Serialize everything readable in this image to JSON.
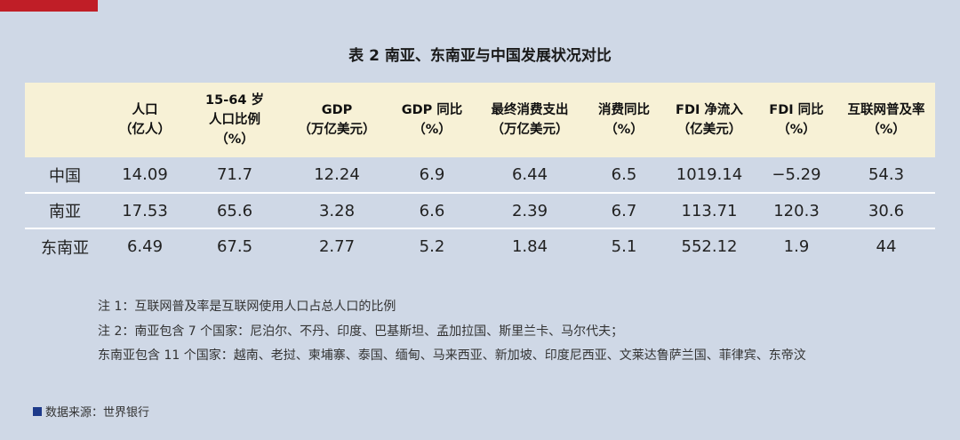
{
  "title": "表 2 南亚、东南亚与中国发展状况对比",
  "colors": {
    "accent_bar": "#c01e27",
    "header_bg": "#f7f1d6",
    "background": "#cfd8e6",
    "source_square": "#1e3a8a"
  },
  "table": {
    "headers": [
      {
        "line1": "",
        "line2": ""
      },
      {
        "line1": "人口",
        "line2": "（亿人）"
      },
      {
        "line1": "15-64 岁",
        "line2": "人口比例",
        "line3": "（%）"
      },
      {
        "line1": "GDP",
        "line2": "（万亿美元）"
      },
      {
        "line1": "GDP 同比",
        "line2": "（%）"
      },
      {
        "line1": "最终消费支出",
        "line2": "（万亿美元）"
      },
      {
        "line1": "消费同比",
        "line2": "（%）"
      },
      {
        "line1": "FDI 净流入",
        "line2": "（亿美元）"
      },
      {
        "line1": "FDI 同比",
        "line2": "（%）"
      },
      {
        "line1": "互联网普及率",
        "line2": "（%）"
      }
    ],
    "rows": [
      [
        "中国",
        "14.09",
        "71.7",
        "12.24",
        "6.9",
        "6.44",
        "6.5",
        "1019.14",
        "−5.29",
        "54.3"
      ],
      [
        "南亚",
        "17.53",
        "65.6",
        "3.28",
        "6.6",
        "2.39",
        "6.7",
        "113.71",
        "120.3",
        "30.6"
      ],
      [
        "东南亚",
        "6.49",
        "67.5",
        "2.77",
        "5.2",
        "1.84",
        "5.1",
        "552.12",
        "1.9",
        "44"
      ]
    ]
  },
  "notes": [
    "注 1：互联网普及率是互联网使用人口占总人口的比例",
    "注 2：南亚包含 7 个国家：尼泊尔、不丹、印度、巴基斯坦、孟加拉国、斯里兰卡、马尔代夫；",
    "东南亚包含 11 个国家：越南、老挝、柬埔寨、泰国、缅甸、马来西亚、新加坡、印度尼西亚、文莱达鲁萨兰国、菲律宾、东帝汶"
  ],
  "source": "数据来源：世界银行"
}
